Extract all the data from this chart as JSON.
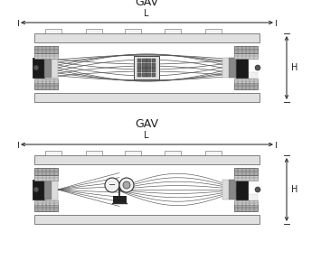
{
  "fig_width": 3.55,
  "fig_height": 2.88,
  "dpi": 100,
  "bg": "#ffffff",
  "dark": "#2a2a2a",
  "mid": "#888888",
  "light": "#cccccc",
  "vlight": "#eeeeee",
  "label_H": "H",
  "label_L": "L",
  "label_GAV": "GAV"
}
